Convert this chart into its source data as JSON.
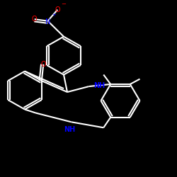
{
  "background_color": "#000000",
  "bond_color": "#ffffff",
  "atom_colors": {
    "N": "#0000ff",
    "O": "#ff0000",
    "NH": "#0000ff",
    "Nplus": "#0000ff",
    "Ominus": "#ff0000"
  },
  "line_width": 1.5,
  "figsize": [
    2.5,
    2.5
  ],
  "dpi": 100
}
